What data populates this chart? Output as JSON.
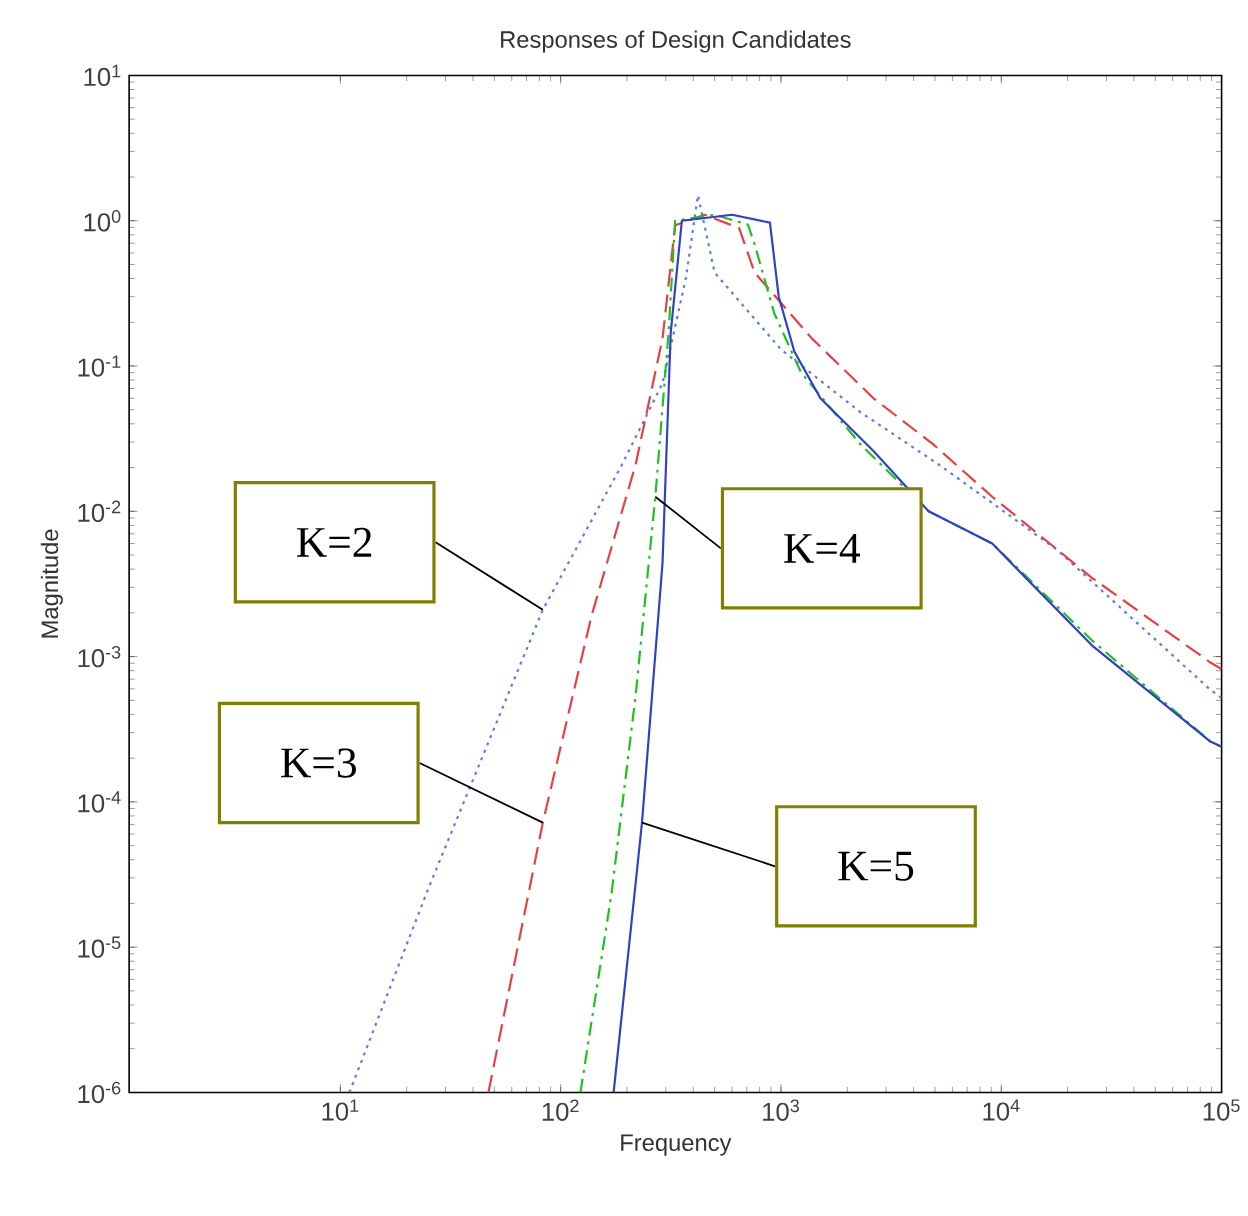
{
  "chart_data": {
    "type": "line",
    "title": "Responses of Design Candidates",
    "xlabel": "Frequency",
    "ylabel": "Magnitude",
    "log": "xy",
    "xlim": [
      1.1,
      100000
    ],
    "ylim": [
      1e-06,
      10
    ],
    "xticks": [
      {
        "value": 10,
        "label": "10$^{1}$"
      },
      {
        "value": 100,
        "label": "10$^{2}$"
      },
      {
        "value": 1000,
        "label": "10$^{3}$"
      },
      {
        "value": 10000,
        "label": "10$^{4}$"
      },
      {
        "value": 100000,
        "label": "10$^{5}$"
      }
    ],
    "yticks": [
      {
        "value": 1e-06,
        "label": "10$^{-6}$"
      },
      {
        "value": 1e-05,
        "label": "10$^{-5}$"
      },
      {
        "value": 0.0001,
        "label": "10$^{-4}$"
      },
      {
        "value": 0.001,
        "label": "10$^{-3}$"
      },
      {
        "value": 0.01,
        "label": "10$^{-2}$"
      },
      {
        "value": 0.1,
        "label": "10$^{-1}$"
      },
      {
        "value": 1,
        "label": "10$^{0}$"
      },
      {
        "value": 10,
        "label": "10$^{1}$"
      }
    ],
    "series": [
      {
        "color": "#5a7cf0",
        "line_style": "dotted",
        "x": [
          11,
          25,
          83,
          190,
          290,
          370,
          420,
          500,
          1000,
          2300,
          5200,
          18000,
          89000,
          100000
        ],
        "values": [
          1e-06,
          2.5e-05,
          0.0021,
          0.021,
          0.076,
          0.4,
          1.5,
          0.44,
          0.13,
          0.048,
          0.021,
          0.0054,
          0.00059,
          0.00052
        ]
      },
      {
        "color": "#e84040",
        "line_style": "dashed",
        "x": [
          47,
          83,
          138,
          219,
          290,
          331,
          450,
          646,
          759,
          1380,
          2630,
          4900,
          9100,
          25700,
          89000,
          100000
        ],
        "values": [
          1e-06,
          7.2e-05,
          0.0019,
          0.021,
          0.155,
          0.93,
          1.1,
          0.89,
          0.44,
          0.155,
          0.06,
          0.029,
          0.0126,
          0.0035,
          0.00091,
          0.00082
        ]
      },
      {
        "color": "#20c020",
        "line_style": "dashdot",
        "x": [
          123,
          170,
          219,
          269,
          309,
          331,
          500,
          708,
          759,
          933,
          1230,
          2290,
          4680,
          9100,
          25700,
          89000,
          100000
        ],
        "values": [
          1e-06,
          2.3e-05,
          0.00054,
          0.0126,
          0.17,
          1.0,
          1.1,
          0.94,
          0.69,
          0.23,
          0.091,
          0.029,
          0.01,
          0.006,
          0.0013,
          0.00026,
          0.00024
        ]
      },
      {
        "color": "#3040c8",
        "line_style": "solid",
        "x": [
          174,
          234,
          290,
          316,
          355,
          600,
          891,
          977,
          1150,
          1510,
          2630,
          4680,
          9100,
          25700,
          89000,
          100000
        ],
        "values": [
          1e-06,
          7.2e-05,
          0.0044,
          0.17,
          1.0,
          1.1,
          0.97,
          0.3,
          0.126,
          0.06,
          0.026,
          0.01,
          0.006,
          0.0012,
          0.00026,
          0.00024
        ]
      }
    ],
    "annotations": [
      "K=2",
      "K=3",
      "K=4",
      "K=5"
    ]
  }
}
